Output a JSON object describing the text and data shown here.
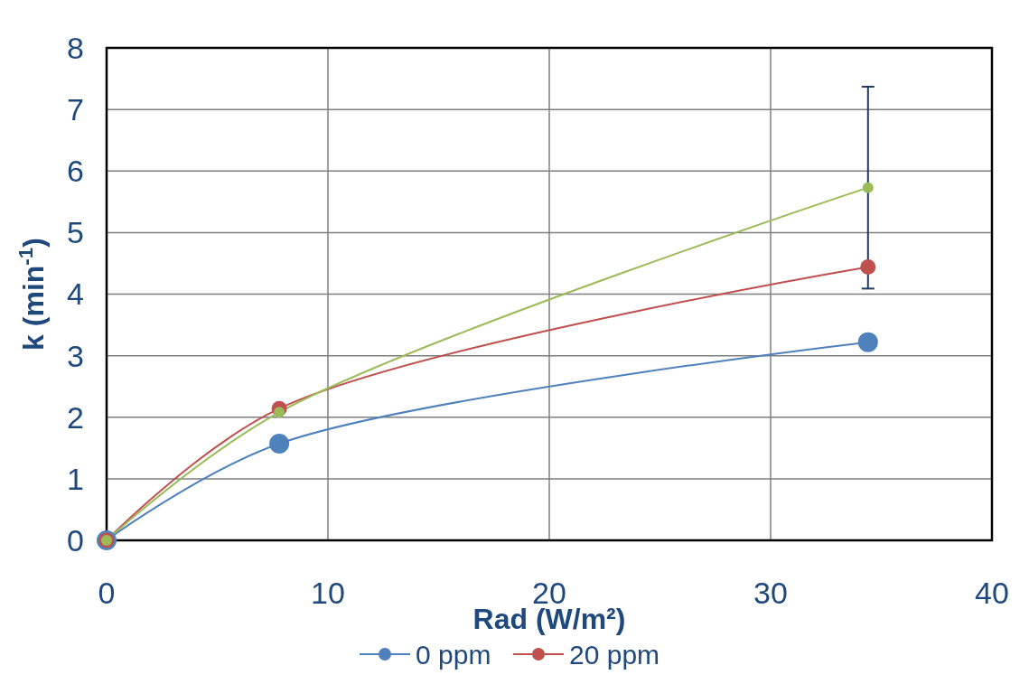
{
  "chart_data": {
    "type": "line",
    "xlabel": "Rad (W/m²)",
    "ylabel": "k (min$^{-1}$)",
    "x": [
      0,
      7.8,
      34.4
    ],
    "series": [
      {
        "name": "0 ppm",
        "color": "#4f81bd",
        "values": [
          0,
          1.57,
          3.22
        ]
      },
      {
        "name": "20 ppm",
        "color": "#c0504d",
        "values": [
          0,
          2.14,
          4.44
        ]
      },
      {
        "color": "#9bbb59",
        "values": [
          0,
          2.08,
          5.73
        ],
        "errors": [
          null,
          null,
          1.64
        ]
      }
    ],
    "xlim": [
      0,
      40
    ],
    "xticks": [
      0,
      10,
      20,
      30,
      40
    ],
    "ylim": [
      0,
      8
    ],
    "yticks": [
      0,
      1,
      2,
      3,
      4,
      5,
      6,
      7,
      8
    ],
    "grid": true,
    "legend": "bottom",
    "marker": "circle",
    "line_style": "solid"
  }
}
